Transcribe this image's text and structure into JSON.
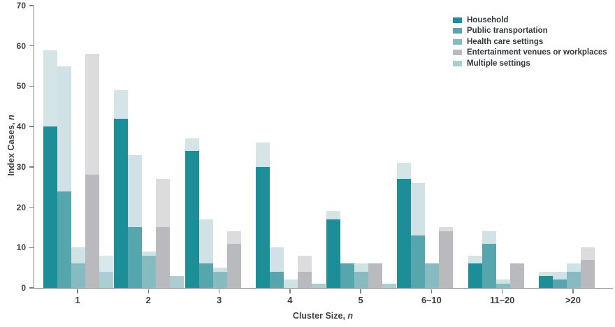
{
  "figure": {
    "y_axis": {
      "label_main": "Index Cases, ",
      "label_italic": "n",
      "ticks": [
        0,
        10,
        20,
        30,
        40,
        50,
        60,
        70
      ]
    },
    "x_axis": {
      "label_main": "Cluster Size, ",
      "label_italic": "n"
    }
  },
  "chart_data": {
    "type": "bar",
    "title": "",
    "xlabel": "Cluster Size, n",
    "ylabel": "Index Cases, n",
    "ylim": [
      0,
      70
    ],
    "grid": false,
    "legend_position": "top-right",
    "categories": [
      "1",
      "2",
      "3",
      "4",
      "5",
      "6–10",
      "11–20",
      ">20"
    ],
    "bar_style": "each bar = solid lower segment + lighter tinted upper segment; totals are bar tops",
    "series": [
      {
        "name": "Household",
        "color": "#1b8e98",
        "light_color": "#d4e4e7",
        "solid_values": [
          40,
          42,
          34,
          30,
          17,
          27,
          6,
          3
        ],
        "total_values": [
          59,
          49,
          37,
          36,
          19,
          31,
          8,
          4
        ]
      },
      {
        "name": "Public transportation",
        "color": "#55a6ad",
        "light_color": "#d0e2e5",
        "solid_values": [
          24,
          15,
          6,
          4,
          6,
          13,
          11,
          2
        ],
        "total_values": [
          55,
          33,
          17,
          10,
          6,
          26,
          14,
          4
        ]
      },
      {
        "name": "Health care settings",
        "color": "#86bbc1",
        "light_color": "#cfe2e4",
        "solid_values": [
          6,
          8,
          4,
          0,
          4,
          6,
          1,
          4
        ],
        "total_values": [
          10,
          9,
          5,
          2,
          6,
          6,
          2,
          6
        ]
      },
      {
        "name": "Entertainment venues or workplaces",
        "color": "#b9babd",
        "light_color": "#dbdcdd",
        "solid_values": [
          28,
          15,
          11,
          4,
          6,
          14,
          6,
          7
        ],
        "total_values": [
          58,
          27,
          14,
          8,
          6,
          15,
          6,
          10
        ]
      },
      {
        "name": "Multiple settings",
        "color": "#abced3",
        "light_color": "#d8e9eb",
        "solid_values": [
          4,
          3,
          0,
          1,
          1,
          0,
          0,
          0
        ],
        "total_values": [
          8,
          3,
          0,
          1,
          1,
          0,
          0,
          0
        ]
      }
    ]
  }
}
